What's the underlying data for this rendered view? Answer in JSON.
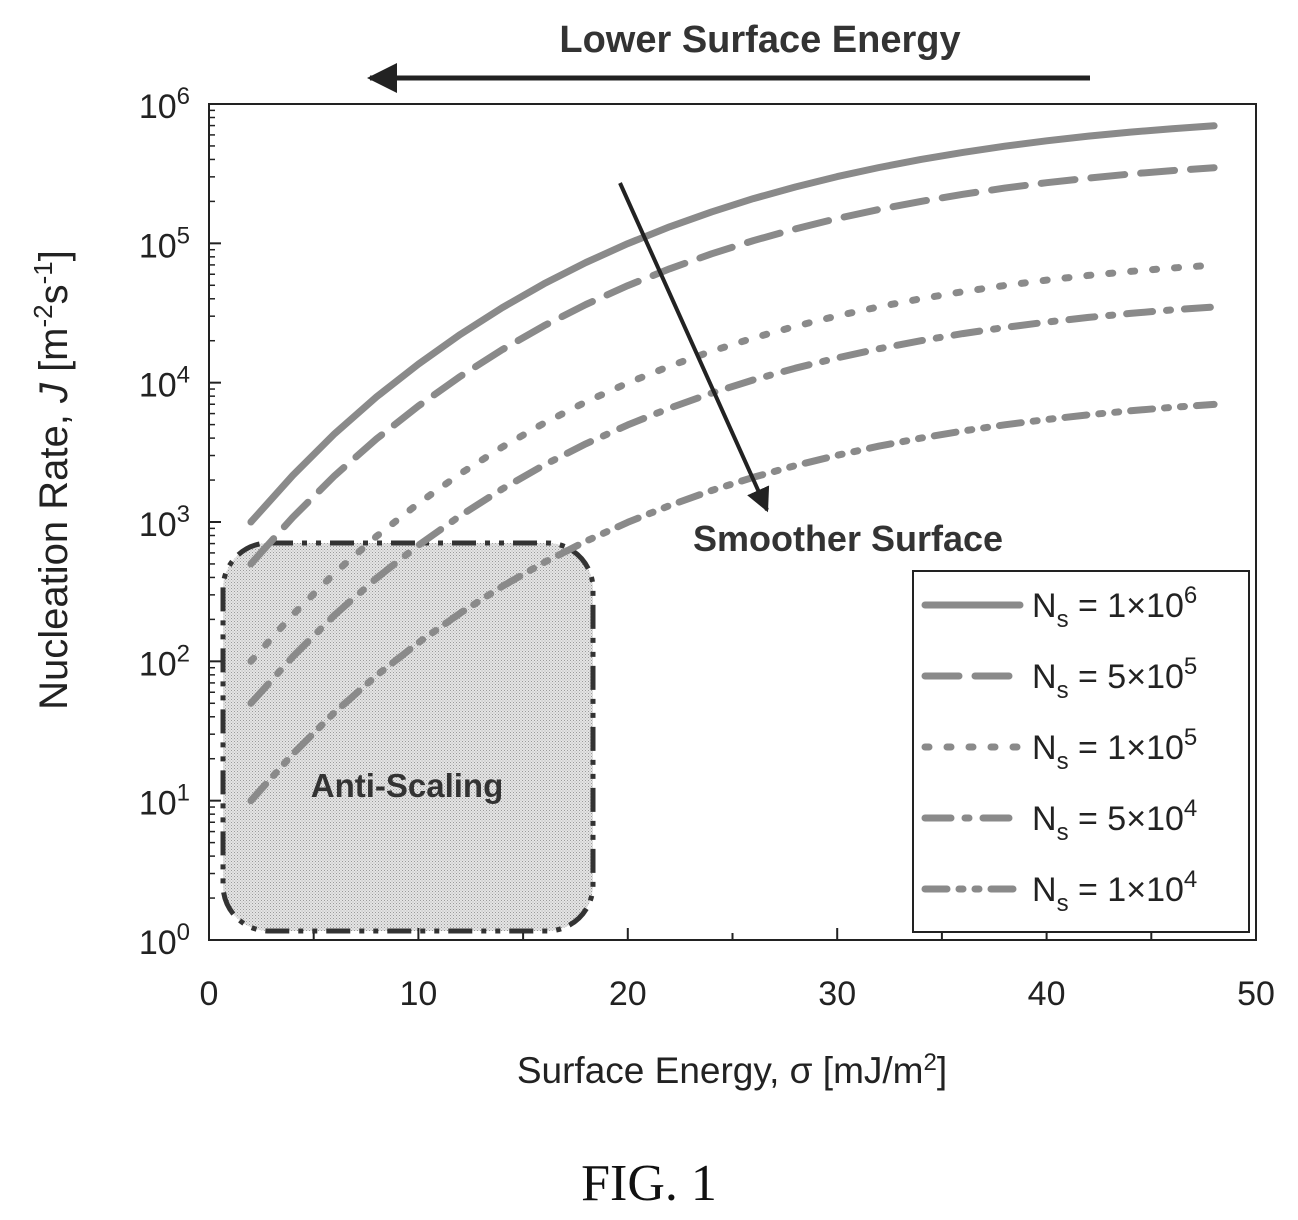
{
  "figure": {
    "caption": "FIG. 1"
  },
  "chart_data": {
    "type": "line",
    "title": "",
    "xlabel": "Surface Energy, σ [mJ/m²]",
    "xlabel_parts": {
      "main": "Surface Energy, σ [mJ/m",
      "sup": "2",
      "tail": "]"
    },
    "ylabel": "Nucleation Rate, J [m⁻²s⁻¹]",
    "ylabel_parts": {
      "pre": "Nucleation Rate, ",
      "italic": "J",
      "mid": " [m",
      "sup1": "-2",
      "mid2": "s",
      "sup2": "-1",
      "tail": "]"
    },
    "xlim": [
      0,
      50
    ],
    "ylim": [
      1,
      1000000
    ],
    "yscale": "log",
    "xticks": [
      0,
      10,
      20,
      30,
      40,
      50
    ],
    "xtick_labels": [
      "0",
      "10",
      "20",
      "30",
      "40",
      "50"
    ],
    "yticks": [
      1,
      10,
      100,
      1000,
      10000,
      100000,
      1000000
    ],
    "ytick_labels": [
      {
        "base": "10",
        "exp": "0"
      },
      {
        "base": "10",
        "exp": "1"
      },
      {
        "base": "10",
        "exp": "2"
      },
      {
        "base": "10",
        "exp": "3"
      },
      {
        "base": "10",
        "exp": "4"
      },
      {
        "base": "10",
        "exp": "5"
      },
      {
        "base": "10",
        "exp": "6"
      }
    ],
    "grid": false,
    "legend_position": "bottom-right",
    "x": [
      2,
      4,
      6,
      8,
      10,
      12,
      14,
      16,
      18,
      20,
      22,
      24,
      26,
      28,
      30,
      32,
      34,
      36,
      38,
      40,
      42,
      44,
      46,
      48
    ],
    "series": [
      {
        "name": "Ns = 1×10^6",
        "legend": {
          "pre": "N",
          "sub": "s",
          "mid": " = 1×10",
          "sup": "6"
        },
        "dash": "solid",
        "values": [
          1000,
          2160,
          4300,
          7900,
          13600,
          22200,
          34500,
          51200,
          72800,
          99500,
          131400,
          168200,
          209300,
          253900,
          301300,
          350400,
          400200,
          449700,
          498100,
          544500,
          588200,
          628700,
          665400,
          697900
        ]
      },
      {
        "name": "Ns = 5×10^5",
        "legend": {
          "pre": "N",
          "sub": "s",
          "mid": " = 5×10",
          "sup": "5"
        },
        "dash": "dash",
        "values": [
          500,
          1080,
          2150,
          3950,
          6800,
          11100,
          17250,
          25600,
          36400,
          49750,
          65700,
          84100,
          104650,
          126950,
          150650,
          175200,
          200100,
          224850,
          249050,
          272250,
          294100,
          314350,
          332700,
          348950
        ]
      },
      {
        "name": "Ns = 1×10^5",
        "legend": {
          "pre": "N",
          "sub": "s",
          "mid": " = 1×10",
          "sup": "5"
        },
        "dash": "dot",
        "values": [
          100,
          216,
          430,
          790,
          1360,
          2220,
          3450,
          5120,
          7280,
          9950,
          13140,
          16820,
          20930,
          25390,
          30130,
          35040,
          40020,
          44970,
          49810,
          54450,
          58820,
          62870,
          66540,
          69790
        ]
      },
      {
        "name": "Ns = 5×10^4",
        "legend": {
          "pre": "N",
          "sub": "s",
          "mid": " = 5×10",
          "sup": "4"
        },
        "dash": "dashdot",
        "values": [
          50,
          108,
          215,
          395,
          680,
          1110,
          1725,
          2560,
          3640,
          4975,
          6570,
          8410,
          10465,
          12695,
          15065,
          17520,
          20010,
          22485,
          24905,
          27225,
          29410,
          31435,
          33270,
          34895
        ]
      },
      {
        "name": "Ns = 1×10^4",
        "legend": {
          "pre": "N",
          "sub": "s",
          "mid": " = 1×10",
          "sup": "4"
        },
        "dash": "dashdotdot",
        "values": [
          10,
          21.6,
          43,
          79,
          136,
          222,
          345,
          512,
          728,
          995,
          1314,
          1682,
          2093,
          2539,
          3013,
          3504,
          4002,
          4497,
          4981,
          5445,
          5882,
          6287,
          6654,
          6979
        ]
      }
    ],
    "annotations": {
      "top_arrow_label": "Lower Surface Energy",
      "diag_arrow_label": "Smoother Surface",
      "region_label": "Anti-Scaling"
    }
  }
}
